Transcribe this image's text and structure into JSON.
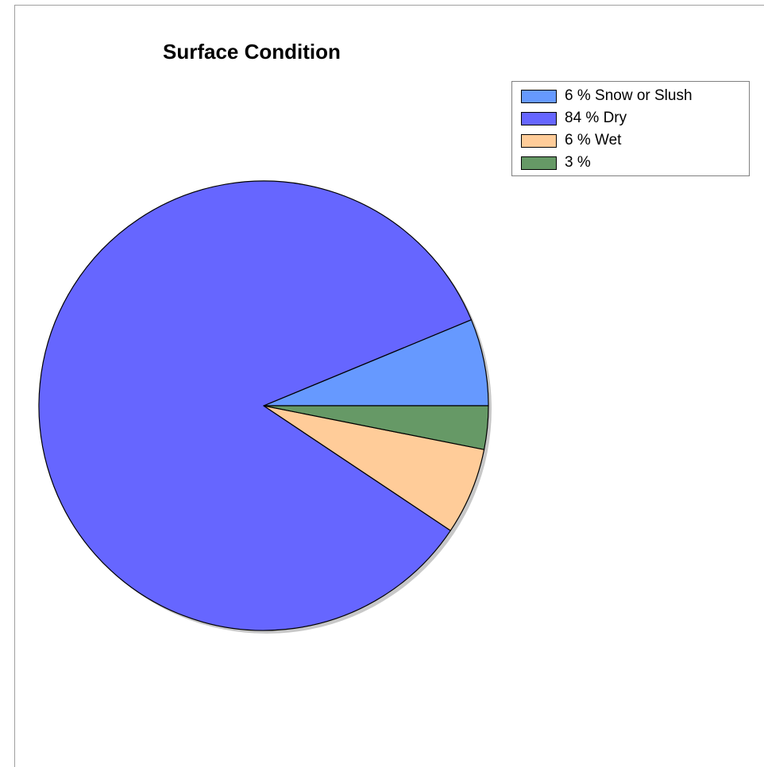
{
  "chart_data": {
    "type": "pie",
    "title": "Surface Condition",
    "slices": [
      {
        "label": "6 % Snow or Slush",
        "value": 6.25,
        "color": "#6699ff"
      },
      {
        "label": "84 % Dry",
        "value": 84.375,
        "color": "#6666ff"
      },
      {
        "label": "6 % Wet",
        "value": 6.25,
        "color": "#ffcc99"
      },
      {
        "label": "3 %",
        "value": 3.125,
        "color": "#669966"
      }
    ],
    "legend_position": "top-right",
    "start_angle_deg": 0,
    "direction": "counterclockwise"
  }
}
